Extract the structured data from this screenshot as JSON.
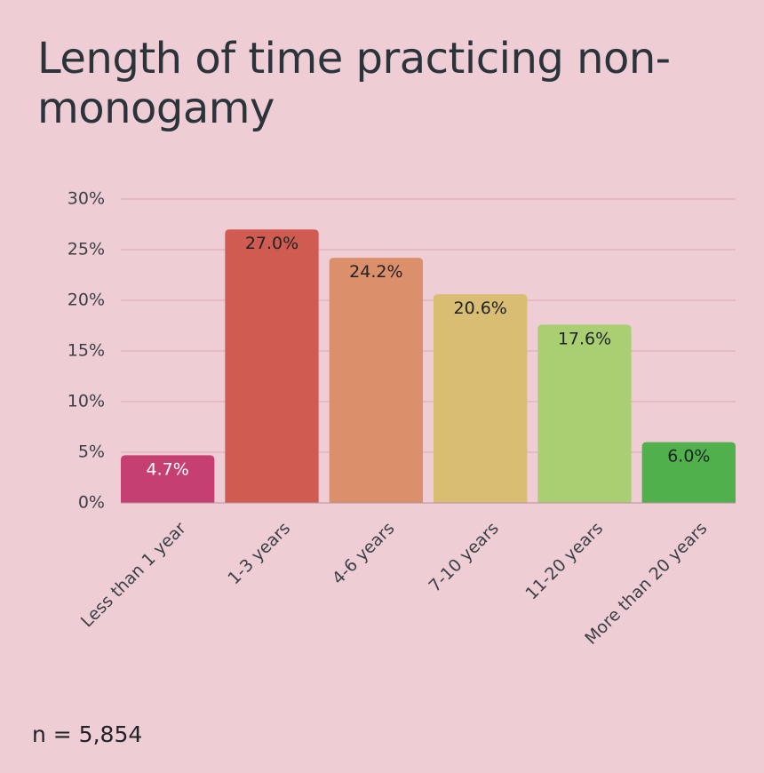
{
  "title": "Length of time practicing non-monogamy",
  "footnote": "n = 5,854",
  "chart_data": {
    "type": "bar",
    "categories": [
      "Less than 1 year",
      "1-3 years",
      "4-6 years",
      "7-10 years",
      "11-20 years",
      "More than 20 years"
    ],
    "values": [
      4.7,
      27.0,
      24.2,
      20.6,
      17.6,
      6.0
    ],
    "data_labels": [
      "4.7%",
      "27.0%",
      "24.2%",
      "20.6%",
      "17.6%",
      "6.0%"
    ],
    "colors": [
      "#c63f72",
      "#d05c51",
      "#dc8f6b",
      "#d8bd72",
      "#aacf73",
      "#4fb04c"
    ],
    "label_colors": [
      "#ffffff",
      "#1e2226",
      "#1e2226",
      "#1e2226",
      "#1e2226",
      "#1e2226"
    ],
    "yticks": [
      "0%",
      "5%",
      "10%",
      "15%",
      "20%",
      "25%",
      "30%"
    ],
    "ytick_values": [
      0,
      5,
      10,
      15,
      20,
      25,
      30
    ],
    "ylim": [
      0,
      30
    ],
    "grid": true,
    "grid_color": "#d8a8b4",
    "xlabel": "",
    "ylabel": ""
  }
}
